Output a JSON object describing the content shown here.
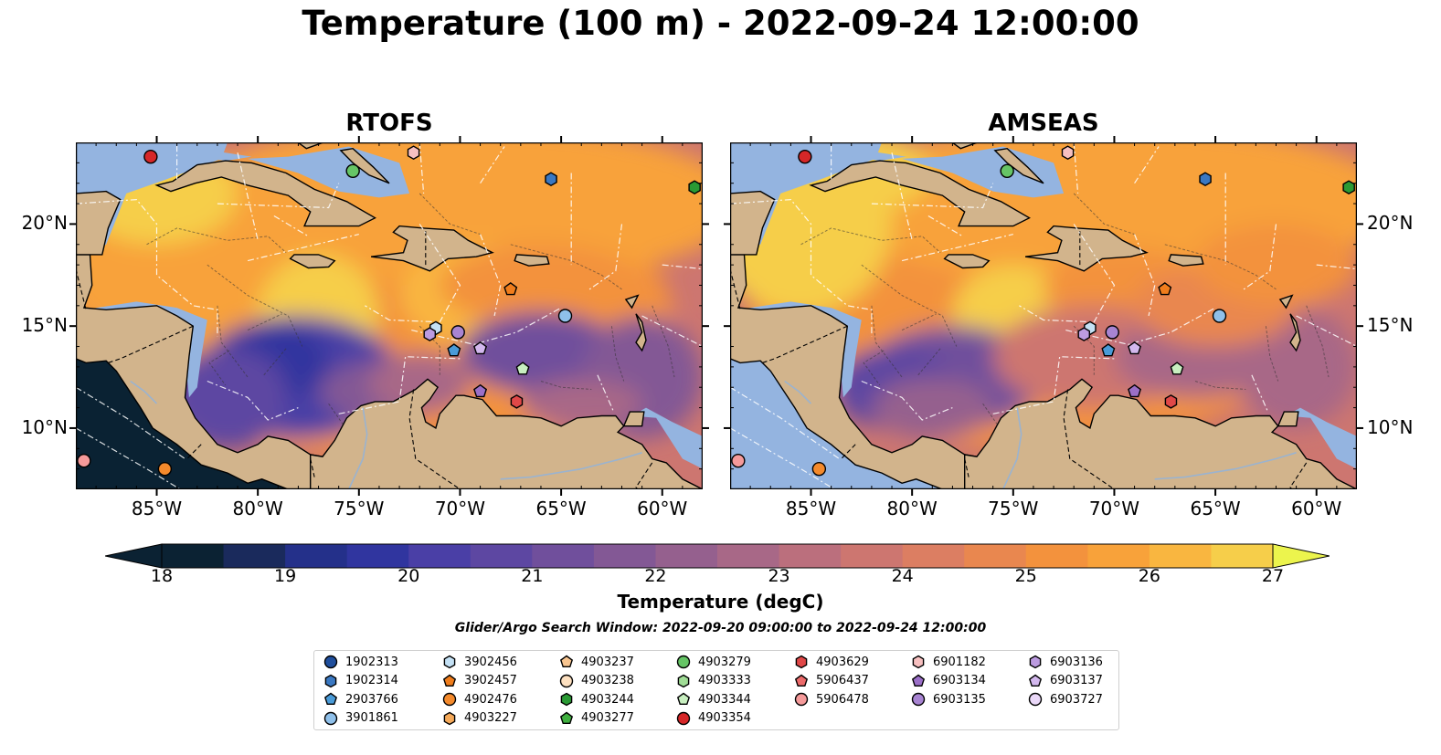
{
  "title": "Temperature (100 m) - 2022-09-24 12:00:00",
  "panels": [
    {
      "id": "rtofs",
      "title": "RTOFS"
    },
    {
      "id": "amseas",
      "title": "AMSEAS"
    }
  ],
  "longitude_ticks": [
    "85°W",
    "80°W",
    "75°W",
    "70°W",
    "65°W",
    "60°W"
  ],
  "latitude_ticks": [
    "20°N",
    "15°N",
    "10°N"
  ],
  "colorbar": {
    "label": "Temperature (degC)",
    "ticks": [
      "18",
      "19",
      "20",
      "21",
      "22",
      "23",
      "24",
      "25",
      "26",
      "27"
    ],
    "min": 18,
    "max": 27,
    "step": 0.5,
    "extend": "both",
    "colormap": "thermal"
  },
  "search_window": "Glider/Argo Search Window: 2022-09-20 09:00:00 to 2022-09-24 12:00:00",
  "colors": {
    "land": "#d2b48c",
    "ocean_masked": "#94b4e0",
    "pacific_dark": "#0a2233",
    "contour": "#ffffff"
  },
  "legend": {
    "columns": [
      [
        {
          "id": "1902313",
          "marker": "circle",
          "color": "#1f4e9c"
        },
        {
          "id": "1902314",
          "marker": "hexagon",
          "color": "#3a78c2"
        },
        {
          "id": "2903766",
          "marker": "pentagon",
          "color": "#4a9bd8"
        },
        {
          "id": "3901861",
          "marker": "circle",
          "color": "#8fc0ea"
        }
      ],
      [
        {
          "id": "3902456",
          "marker": "hexagon",
          "color": "#c4e1f5"
        },
        {
          "id": "3902457",
          "marker": "pentagon",
          "color": "#f07d1c"
        },
        {
          "id": "4902476",
          "marker": "circle",
          "color": "#f48a2c"
        },
        {
          "id": "4903227",
          "marker": "hexagon",
          "color": "#f6aa5a"
        }
      ],
      [
        {
          "id": "4903237",
          "marker": "pentagon",
          "color": "#f8c590"
        },
        {
          "id": "4903238",
          "marker": "circle",
          "color": "#fde0c0"
        },
        {
          "id": "4903244",
          "marker": "hexagon",
          "color": "#2a9a34"
        },
        {
          "id": "4903277",
          "marker": "pentagon",
          "color": "#40b040"
        }
      ],
      [
        {
          "id": "4903279",
          "marker": "circle",
          "color": "#66c566"
        },
        {
          "id": "4903333",
          "marker": "hexagon",
          "color": "#a0dd96"
        },
        {
          "id": "4903344",
          "marker": "pentagon",
          "color": "#c8efc0"
        },
        {
          "id": "4903354",
          "marker": "circle",
          "color": "#d62728"
        }
      ],
      [
        {
          "id": "4903629",
          "marker": "hexagon",
          "color": "#e04848"
        },
        {
          "id": "5906437",
          "marker": "pentagon",
          "color": "#ec6a6a"
        },
        {
          "id": "5906478",
          "marker": "circle",
          "color": "#f59a9a"
        }
      ],
      [
        {
          "id": "6901182",
          "marker": "hexagon",
          "color": "#f7c0c0"
        },
        {
          "id": "6903134",
          "marker": "pentagon",
          "color": "#9b6fc8"
        },
        {
          "id": "6903135",
          "marker": "circle",
          "color": "#a884d2"
        }
      ],
      [
        {
          "id": "6903136",
          "marker": "hexagon",
          "color": "#bc9be0"
        },
        {
          "id": "6903137",
          "marker": "pentagon",
          "color": "#d3b8ee"
        },
        {
          "id": "6903727",
          "marker": "circle",
          "color": "#ead8f8"
        }
      ]
    ]
  },
  "map_extent": {
    "lon": [
      -89,
      -58
    ],
    "lat": [
      7,
      24
    ]
  },
  "platform_positions": [
    {
      "id": "4903354",
      "lon": -85.3,
      "lat": 23.3
    },
    {
      "id": "4903279",
      "lon": -75.3,
      "lat": 22.6
    },
    {
      "id": "6901182",
      "lon": -72.3,
      "lat": 23.5
    },
    {
      "id": "1902314",
      "lon": -65.5,
      "lat": 22.2
    },
    {
      "id": "4903244",
      "lon": -58.4,
      "lat": 21.8
    },
    {
      "id": "3902457",
      "lon": -67.5,
      "lat": 16.8
    },
    {
      "id": "3901861",
      "lon": -64.8,
      "lat": 15.5
    },
    {
      "id": "3902456",
      "lon": -71.2,
      "lat": 14.9
    },
    {
      "id": "6903136",
      "lon": -71.5,
      "lat": 14.6
    },
    {
      "id": "6903135",
      "lon": -70.1,
      "lat": 14.7
    },
    {
      "id": "2903766",
      "lon": -70.3,
      "lat": 13.8
    },
    {
      "id": "6903137",
      "lon": -69.0,
      "lat": 13.9
    },
    {
      "id": "4903344",
      "lon": -66.9,
      "lat": 12.9
    },
    {
      "id": "6903134",
      "lon": -69.0,
      "lat": 11.8
    },
    {
      "id": "4903629",
      "lon": -67.2,
      "lat": 11.3
    },
    {
      "id": "5906478",
      "lon": -88.6,
      "lat": 8.4
    },
    {
      "id": "4902476",
      "lon": -84.6,
      "lat": 8.0
    }
  ]
}
